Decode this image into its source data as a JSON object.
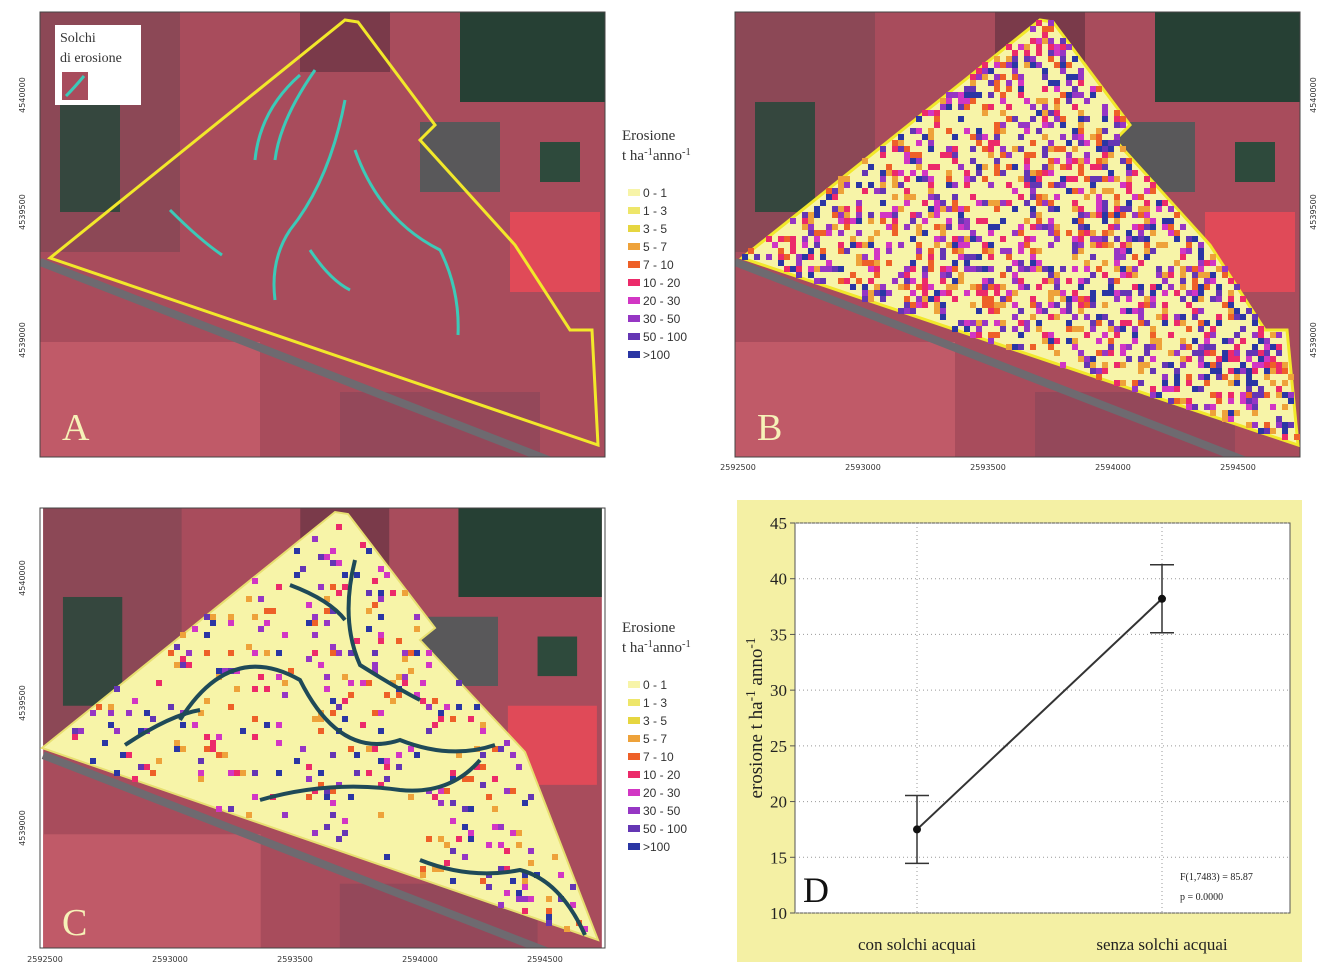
{
  "maps": [
    {
      "label": "A",
      "inset_legend": [
        "Solchi",
        "di erosione"
      ]
    },
    {
      "label": "B"
    },
    {
      "label": "C"
    }
  ],
  "coordinates": {
    "northing": [
      4540000,
      4539500,
      4539000
    ],
    "easting": [
      2592500,
      2593000,
      2593500,
      2594000,
      2594500
    ]
  },
  "legend": {
    "title": "Erosione",
    "unit": [
      "t ha",
      "-1",
      "anno",
      "-1"
    ],
    "classes": [
      {
        "label": "0 - 1",
        "color": "#f7f4a8"
      },
      {
        "label": "1 - 3",
        "color": "#eee66a"
      },
      {
        "label": "3 - 5",
        "color": "#e6d640"
      },
      {
        "label": "5 - 7",
        "color": "#eea23a"
      },
      {
        "label": "7 - 10",
        "color": "#ee6028"
      },
      {
        "label": "10 - 20",
        "color": "#ec2a6a"
      },
      {
        "label": "20 - 30",
        "color": "#d236c4"
      },
      {
        "label": "30 - 50",
        "color": "#9636c4"
      },
      {
        "label": "50 - 100",
        "color": "#6436b4"
      },
      {
        "label": ">100",
        "color": "#2a36a4"
      }
    ]
  },
  "chart_data": {
    "type": "line",
    "label": "D",
    "categories": [
      "con solchi acquai",
      "senza solchi acquai"
    ],
    "values": [
      17.5,
      38.2
    ],
    "errors": [
      3.05,
      3.05
    ],
    "y_label": [
      "erosione  t  ha",
      "-1",
      "  anno",
      "-1"
    ],
    "ylim": [
      10,
      45
    ],
    "yticks": [
      10,
      15,
      20,
      25,
      30,
      35,
      40,
      45
    ],
    "grid": true,
    "color": "#333333",
    "background": "#f4f0a4",
    "annotations": [
      "F(1,7483) = 85.87",
      "p = 0.0000"
    ]
  }
}
